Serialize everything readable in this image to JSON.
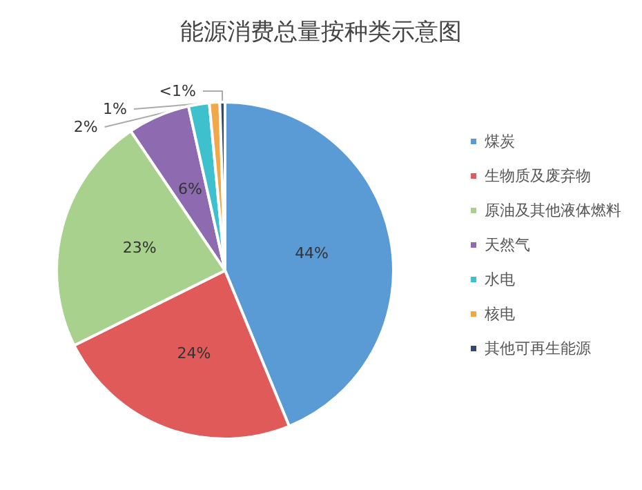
{
  "chart_data": {
    "type": "pie",
    "title": "能源消费总量按种类示意图",
    "categories": [
      "煤炭",
      "生物质及废弃物",
      "原油及其他液体燃料",
      "天然气",
      "水电",
      "核电",
      "其他可再生能源"
    ],
    "values": [
      44,
      24,
      23,
      6,
      2,
      1,
      0.5
    ],
    "value_labels": [
      "44%",
      "24%",
      "23%",
      "6%",
      "2%",
      "1%",
      "<1%"
    ],
    "colors": [
      "#5b9bd5",
      "#e05a5a",
      "#a9d18e",
      "#8e6bb0",
      "#3fc1cd",
      "#f0a848",
      "#2f4a6e"
    ],
    "legend": "right"
  }
}
